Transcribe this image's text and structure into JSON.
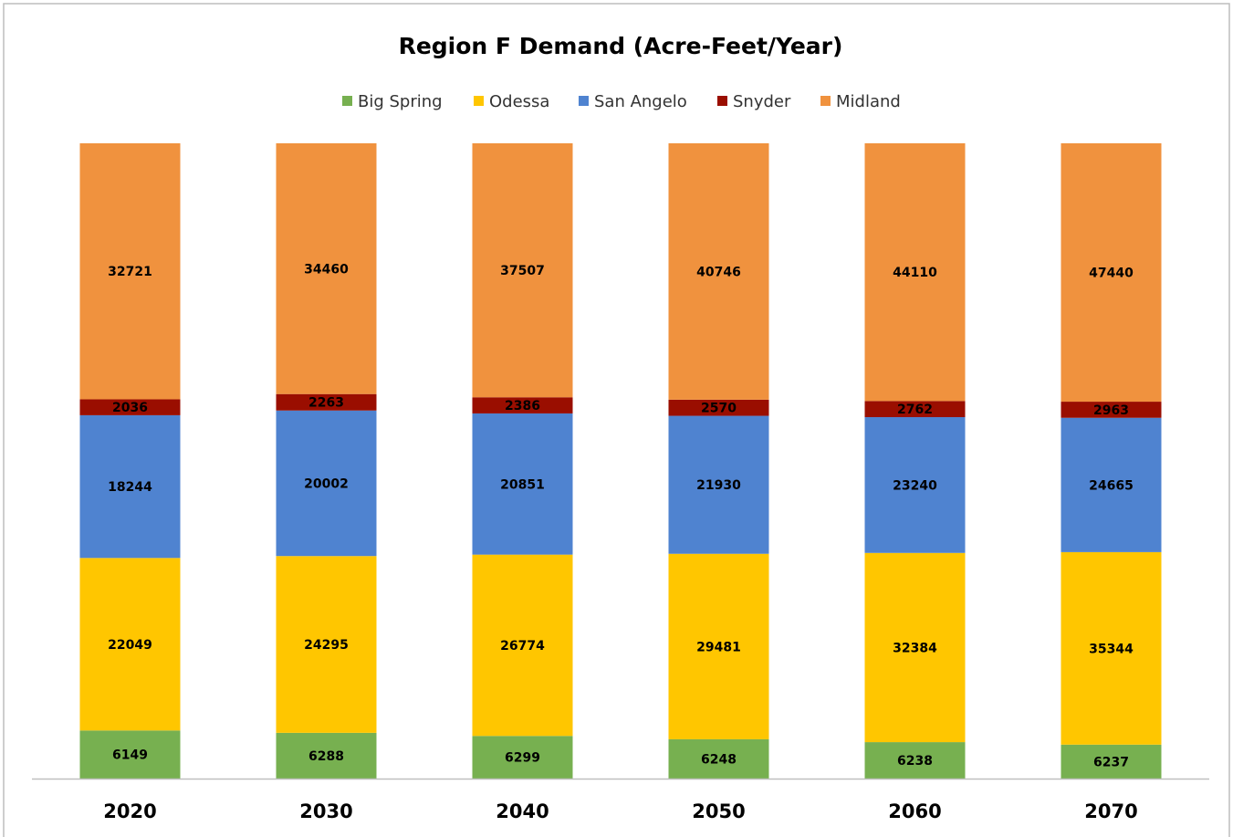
{
  "chart_data": {
    "type": "bar",
    "stacked": "percent",
    "title": "Region F Demand (Acre-Feet/Year)",
    "legend": "top",
    "categories": [
      "2020",
      "2030",
      "2040",
      "2050",
      "2060",
      "2070"
    ],
    "series": [
      {
        "name": "Big Spring",
        "color": "#77b050",
        "values": [
          6149,
          6288,
          6299,
          6248,
          6238,
          6237
        ]
      },
      {
        "name": "Odessa",
        "color": "#ffc600",
        "values": [
          22049,
          24295,
          26774,
          29481,
          32384,
          35344
        ]
      },
      {
        "name": "San Angelo",
        "color": "#4f83d0",
        "values": [
          18244,
          20002,
          20851,
          21930,
          23240,
          24665
        ]
      },
      {
        "name": "Snyder",
        "color": "#9a0e00",
        "values": [
          2036,
          2263,
          2386,
          2570,
          2762,
          2963
        ]
      },
      {
        "name": "Midland",
        "color": "#f0923e",
        "values": [
          32721,
          34460,
          37507,
          40746,
          44110,
          47440
        ]
      }
    ]
  }
}
